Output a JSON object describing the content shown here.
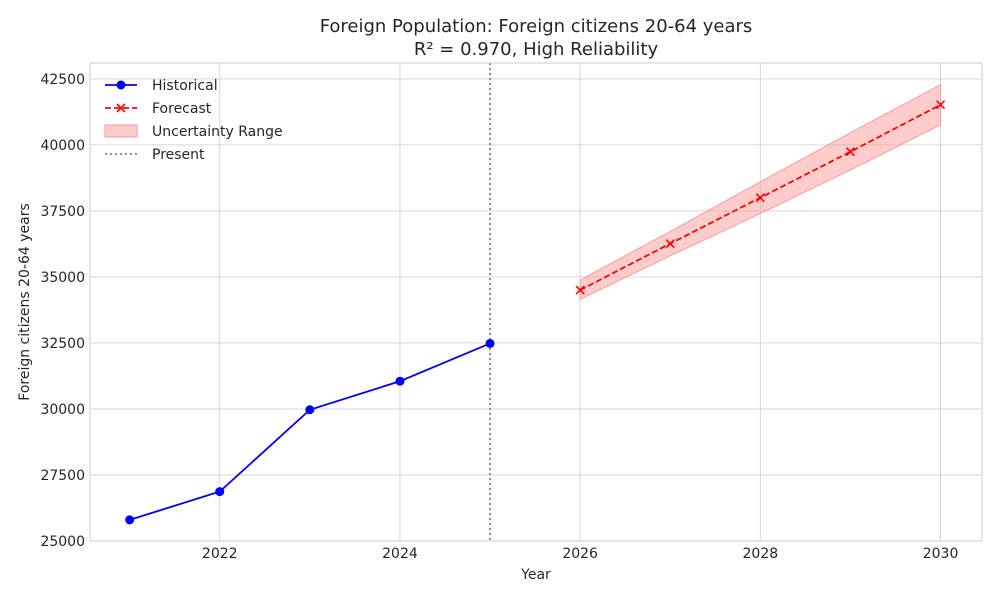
{
  "chart_data": {
    "type": "line",
    "title": "Foreign Population: Foreign citizens 20-64 years",
    "subtitle": "R² = 0.970, High Reliability",
    "xlabel": "Year",
    "ylabel": "Foreign citizens 20-64 years",
    "xlim": [
      2020.56,
      2030.46
    ],
    "ylim": [
      25000,
      43100
    ],
    "x_ticks": [
      2022,
      2024,
      2026,
      2028,
      2030
    ],
    "y_ticks": [
      25000,
      27500,
      30000,
      32500,
      35000,
      37500,
      40000,
      42500
    ],
    "grid": true,
    "legend_position": "top-left",
    "present_x": 2025,
    "series": [
      {
        "name": "Historical",
        "color": "#0000ff",
        "style": "solid",
        "marker": "circle",
        "x": [
          2021,
          2022,
          2023,
          2024,
          2025
        ],
        "values": [
          25800,
          26870,
          29970,
          31050,
          32480
        ]
      },
      {
        "name": "Forecast",
        "color": "#ff0000",
        "style": "dashed",
        "marker": "x",
        "x": [
          2026,
          2027,
          2028,
          2029,
          2030
        ],
        "values": [
          34500,
          36260,
          38000,
          39740,
          41520
        ]
      }
    ],
    "uncertainty": {
      "name": "Uncertainty Range",
      "color": "#ff9999",
      "x": [
        2026,
        2027,
        2028,
        2029,
        2030
      ],
      "lower": [
        34150,
        35800,
        37400,
        39050,
        40760
      ],
      "upper": [
        34880,
        36720,
        38600,
        40460,
        42280
      ]
    },
    "present_label": "Present"
  }
}
